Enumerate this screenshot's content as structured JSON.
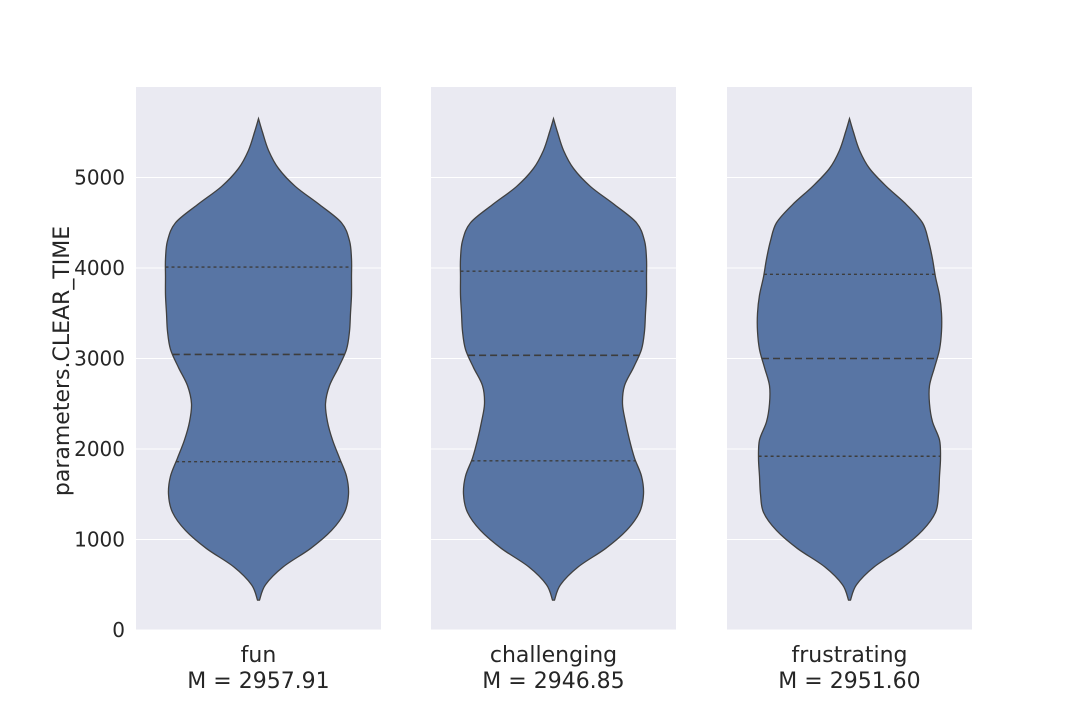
{
  "chart_data": {
    "type": "violin",
    "ylabel": "parameters.CLEAR_TIME",
    "xlabel": "",
    "title": "",
    "ylim": [
      0,
      6000
    ],
    "yticks": [
      0,
      1000,
      2000,
      3000,
      4000,
      5000
    ],
    "grid": true,
    "colors": {
      "violin_fill": "#5875a4",
      "violin_edge": "#404040",
      "panel_bg": "#eaeaf2",
      "grid": "#ffffff"
    },
    "panels": [
      {
        "category": "fun",
        "mean_label": "M = 2957.91",
        "quartiles": {
          "q1": 1860,
          "median": 3045,
          "q3": 4010
        },
        "range": [
          330,
          5650
        ],
        "density": [
          [
            330,
            0.01
          ],
          [
            500,
            0.07
          ],
          [
            700,
            0.25
          ],
          [
            900,
            0.52
          ],
          [
            1100,
            0.73
          ],
          [
            1300,
            0.86
          ],
          [
            1500,
            0.9
          ],
          [
            1700,
            0.88
          ],
          [
            1900,
            0.81
          ],
          [
            2100,
            0.74
          ],
          [
            2300,
            0.69
          ],
          [
            2500,
            0.67
          ],
          [
            2700,
            0.71
          ],
          [
            2900,
            0.8
          ],
          [
            3100,
            0.88
          ],
          [
            3300,
            0.91
          ],
          [
            3500,
            0.92
          ],
          [
            3700,
            0.93
          ],
          [
            3900,
            0.93
          ],
          [
            4100,
            0.93
          ],
          [
            4300,
            0.91
          ],
          [
            4500,
            0.83
          ],
          [
            4700,
            0.61
          ],
          [
            4900,
            0.37
          ],
          [
            5100,
            0.2
          ],
          [
            5300,
            0.1
          ],
          [
            5500,
            0.04
          ],
          [
            5650,
            0.0
          ]
        ]
      },
      {
        "category": "challenging",
        "mean_label": "M = 2946.85",
        "quartiles": {
          "q1": 1870,
          "median": 3035,
          "q3": 3965
        },
        "range": [
          330,
          5650
        ],
        "density": [
          [
            330,
            0.01
          ],
          [
            500,
            0.07
          ],
          [
            700,
            0.25
          ],
          [
            900,
            0.52
          ],
          [
            1100,
            0.73
          ],
          [
            1300,
            0.86
          ],
          [
            1500,
            0.9
          ],
          [
            1700,
            0.88
          ],
          [
            1900,
            0.81
          ],
          [
            2100,
            0.76
          ],
          [
            2300,
            0.72
          ],
          [
            2500,
            0.69
          ],
          [
            2700,
            0.71
          ],
          [
            2900,
            0.8
          ],
          [
            3100,
            0.88
          ],
          [
            3300,
            0.91
          ],
          [
            3500,
            0.92
          ],
          [
            3700,
            0.93
          ],
          [
            3900,
            0.93
          ],
          [
            4100,
            0.93
          ],
          [
            4300,
            0.91
          ],
          [
            4500,
            0.83
          ],
          [
            4700,
            0.61
          ],
          [
            4900,
            0.37
          ],
          [
            5100,
            0.2
          ],
          [
            5300,
            0.1
          ],
          [
            5500,
            0.04
          ],
          [
            5650,
            0.0
          ]
        ]
      },
      {
        "category": "frustrating",
        "mean_label": "M = 2951.60",
        "quartiles": {
          "q1": 1920,
          "median": 3000,
          "q3": 3930
        },
        "range": [
          330,
          5650
        ],
        "density": [
          [
            330,
            0.01
          ],
          [
            500,
            0.07
          ],
          [
            700,
            0.25
          ],
          [
            900,
            0.52
          ],
          [
            1100,
            0.73
          ],
          [
            1300,
            0.86
          ],
          [
            1500,
            0.89
          ],
          [
            1700,
            0.9
          ],
          [
            1900,
            0.91
          ],
          [
            2100,
            0.9
          ],
          [
            2300,
            0.83
          ],
          [
            2500,
            0.8
          ],
          [
            2700,
            0.8
          ],
          [
            2900,
            0.85
          ],
          [
            3100,
            0.9
          ],
          [
            3300,
            0.92
          ],
          [
            3500,
            0.92
          ],
          [
            3700,
            0.9
          ],
          [
            3900,
            0.86
          ],
          [
            4100,
            0.83
          ],
          [
            4300,
            0.79
          ],
          [
            4500,
            0.73
          ],
          [
            4700,
            0.57
          ],
          [
            4900,
            0.37
          ],
          [
            5100,
            0.2
          ],
          [
            5300,
            0.1
          ],
          [
            5500,
            0.04
          ],
          [
            5650,
            0.0
          ]
        ]
      }
    ]
  }
}
